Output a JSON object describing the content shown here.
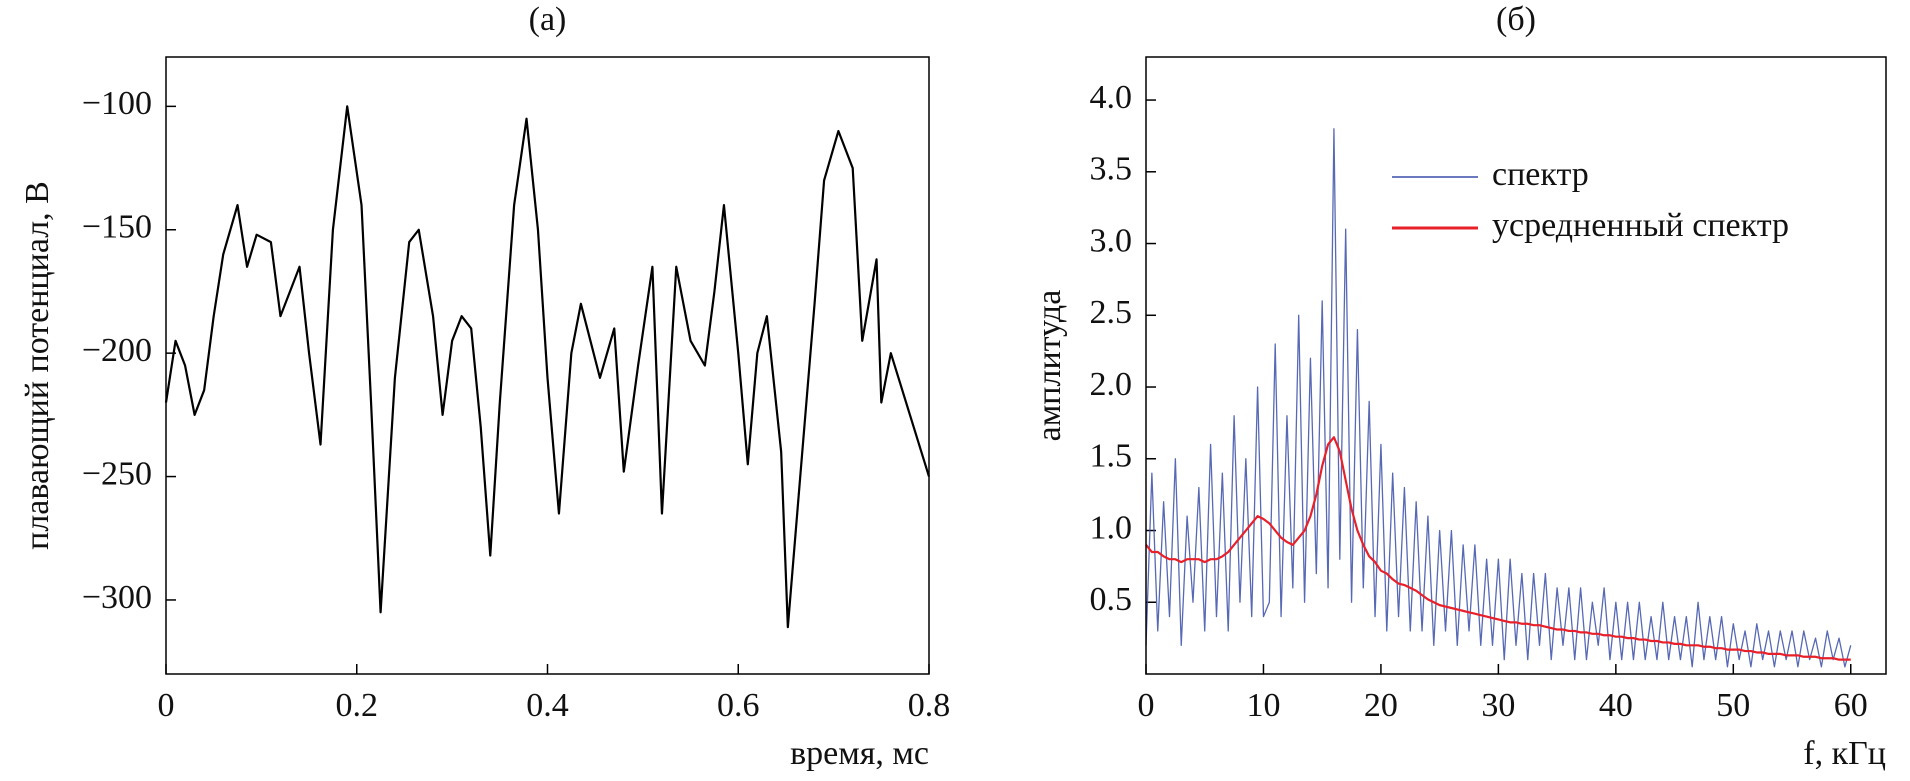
{
  "chart_data": [
    {
      "type": "line",
      "title": "(а)",
      "x_label": "время, мс",
      "y_label": "плавающий потенциал, В",
      "x": [
        0,
        0.01,
        0.02,
        0.03,
        0.04,
        0.05,
        0.06,
        0.075,
        0.085,
        0.095,
        0.11,
        0.12,
        0.13,
        0.14,
        0.15,
        0.162,
        0.175,
        0.19,
        0.205,
        0.215,
        0.225,
        0.24,
        0.255,
        0.265,
        0.28,
        0.29,
        0.3,
        0.31,
        0.32,
        0.33,
        0.34,
        0.35,
        0.365,
        0.378,
        0.39,
        0.4,
        0.412,
        0.425,
        0.435,
        0.445,
        0.455,
        0.47,
        0.48,
        0.495,
        0.51,
        0.52,
        0.535,
        0.55,
        0.565,
        0.575,
        0.585,
        0.6,
        0.61,
        0.62,
        0.63,
        0.645,
        0.652,
        0.665,
        0.68,
        0.69,
        0.705,
        0.72,
        0.73,
        0.745,
        0.75,
        0.76,
        0.8
      ],
      "series": [
        {
          "name": null,
          "color": "#000000",
          "values": [
            -220,
            -195,
            -205,
            -225,
            -215,
            -185,
            -160,
            -140,
            -165,
            -152,
            -155,
            -185,
            -175,
            -165,
            -200,
            -237,
            -150,
            -100,
            -140,
            -220,
            -305,
            -210,
            -155,
            -150,
            -185,
            -225,
            -195,
            -185,
            -190,
            -230,
            -282,
            -220,
            -140,
            -105,
            -150,
            -210,
            -265,
            -200,
            -180,
            -195,
            -210,
            -190,
            -248,
            -205,
            -165,
            -265,
            -165,
            -195,
            -205,
            -175,
            -140,
            -200,
            -245,
            -200,
            -185,
            -240,
            -311,
            -250,
            -180,
            -130,
            -110,
            -125,
            -195,
            -162,
            -220,
            -200,
            -250
          ]
        }
      ],
      "xlim": [
        0,
        0.8
      ],
      "xticks": [
        0,
        0.2,
        0.4,
        0.6,
        0.8
      ],
      "ylim": [
        -330,
        -80
      ],
      "yticks": [
        {
          "value": -100,
          "label": "−100"
        },
        {
          "value": -150,
          "label": "−150"
        },
        {
          "value": -200,
          "label": "−200"
        },
        {
          "value": -250,
          "label": "−250"
        },
        {
          "value": -300,
          "label": "−300"
        }
      ]
    },
    {
      "type": "line",
      "title": "(б)",
      "x_label": "f, кГц",
      "y_label": "амплитуда",
      "legend": "upper right",
      "x": [
        0,
        0.5,
        1,
        1.5,
        2,
        2.5,
        3,
        3.5,
        4,
        4.5,
        5,
        5.5,
        6,
        6.5,
        7,
        7.5,
        8,
        8.5,
        9,
        9.5,
        10,
        10.5,
        11,
        11.5,
        12,
        12.5,
        13,
        13.5,
        14,
        14.5,
        15,
        15.5,
        16,
        16.5,
        17,
        17.5,
        18,
        18.5,
        19,
        19.5,
        20,
        20.5,
        21,
        21.5,
        22,
        22.5,
        23,
        23.5,
        24,
        24.5,
        25,
        25.5,
        26,
        26.5,
        27,
        27.5,
        28,
        28.5,
        29,
        29.5,
        30,
        30.5,
        31,
        31.5,
        32,
        32.5,
        33,
        33.5,
        34,
        34.5,
        35,
        35.5,
        36,
        36.5,
        37,
        37.5,
        38,
        38.5,
        39,
        39.5,
        40,
        40.5,
        41,
        41.5,
        42,
        42.5,
        43,
        43.5,
        44,
        44.5,
        45,
        45.5,
        46,
        46.5,
        47,
        47.5,
        48,
        48.5,
        49,
        49.5,
        50,
        50.5,
        51,
        51.5,
        52,
        52.5,
        53,
        53.5,
        54,
        54.5,
        55,
        55.5,
        56,
        56.5,
        57,
        57.5,
        58,
        58.5,
        59,
        59.5,
        60
      ],
      "series": [
        {
          "name": "спектр",
          "color": "#3a4fa8",
          "values": [
            0.2,
            1.4,
            0.3,
            1.2,
            0.4,
            1.5,
            0.2,
            1.1,
            0.5,
            1.3,
            0.3,
            1.6,
            0.4,
            1.4,
            0.3,
            1.8,
            0.5,
            1.5,
            0.4,
            2.0,
            0.4,
            0.5,
            2.3,
            0.4,
            1.8,
            0.6,
            2.5,
            0.5,
            2.2,
            0.7,
            2.6,
            0.6,
            3.8,
            0.8,
            3.1,
            0.5,
            2.4,
            0.6,
            1.9,
            0.4,
            1.6,
            0.3,
            1.4,
            0.4,
            1.3,
            0.3,
            1.2,
            0.3,
            1.1,
            0.2,
            1.0,
            0.3,
            1.0,
            0.2,
            0.9,
            0.3,
            0.9,
            0.2,
            0.8,
            0.2,
            0.8,
            0.1,
            0.8,
            0.2,
            0.7,
            0.1,
            0.7,
            0.2,
            0.7,
            0.1,
            0.6,
            0.2,
            0.6,
            0.1,
            0.6,
            0.1,
            0.5,
            0.2,
            0.6,
            0.1,
            0.5,
            0.1,
            0.5,
            0.1,
            0.5,
            0.1,
            0.4,
            0.1,
            0.5,
            0.1,
            0.4,
            0.1,
            0.4,
            0.05,
            0.5,
            0.1,
            0.4,
            0.1,
            0.4,
            0.05,
            0.35,
            0.1,
            0.3,
            0.05,
            0.35,
            0.1,
            0.3,
            0.05,
            0.3,
            0.1,
            0.3,
            0.05,
            0.3,
            0.1,
            0.25,
            0.05,
            0.3,
            0.1,
            0.25,
            0.05,
            0.2
          ]
        },
        {
          "name": "усредненный спектр",
          "color": "#e8202a",
          "values": [
            0.9,
            0.85,
            0.85,
            0.82,
            0.8,
            0.8,
            0.78,
            0.8,
            0.8,
            0.8,
            0.78,
            0.8,
            0.8,
            0.82,
            0.85,
            0.9,
            0.95,
            1.0,
            1.05,
            1.1,
            1.08,
            1.05,
            1.0,
            0.95,
            0.92,
            0.9,
            0.95,
            1.0,
            1.1,
            1.25,
            1.45,
            1.6,
            1.65,
            1.55,
            1.35,
            1.15,
            1.0,
            0.9,
            0.82,
            0.78,
            0.72,
            0.7,
            0.66,
            0.63,
            0.62,
            0.6,
            0.58,
            0.55,
            0.52,
            0.5,
            0.48,
            0.47,
            0.46,
            0.45,
            0.44,
            0.43,
            0.42,
            0.41,
            0.4,
            0.39,
            0.38,
            0.37,
            0.36,
            0.36,
            0.35,
            0.35,
            0.34,
            0.34,
            0.33,
            0.32,
            0.31,
            0.31,
            0.3,
            0.3,
            0.29,
            0.29,
            0.28,
            0.28,
            0.27,
            0.27,
            0.26,
            0.26,
            0.25,
            0.25,
            0.24,
            0.24,
            0.23,
            0.23,
            0.22,
            0.22,
            0.21,
            0.21,
            0.2,
            0.2,
            0.2,
            0.19,
            0.19,
            0.18,
            0.18,
            0.17,
            0.17,
            0.17,
            0.16,
            0.16,
            0.15,
            0.15,
            0.14,
            0.14,
            0.14,
            0.13,
            0.13,
            0.13,
            0.12,
            0.12,
            0.12,
            0.11,
            0.11,
            0.11,
            0.1,
            0.1,
            0.1
          ]
        }
      ],
      "xlim": [
        0,
        63
      ],
      "xticks": [
        0,
        10,
        20,
        30,
        40,
        50,
        60
      ],
      "ylim": [
        0,
        4.3
      ],
      "yticks": [
        0.5,
        {
          "value": 1,
          "label": "1.0"
        },
        1.5,
        {
          "value": 2,
          "label": "2.0"
        },
        2.5,
        {
          "value": 3,
          "label": "3.0"
        },
        3.5,
        {
          "value": 4,
          "label": "4.0"
        }
      ]
    }
  ]
}
